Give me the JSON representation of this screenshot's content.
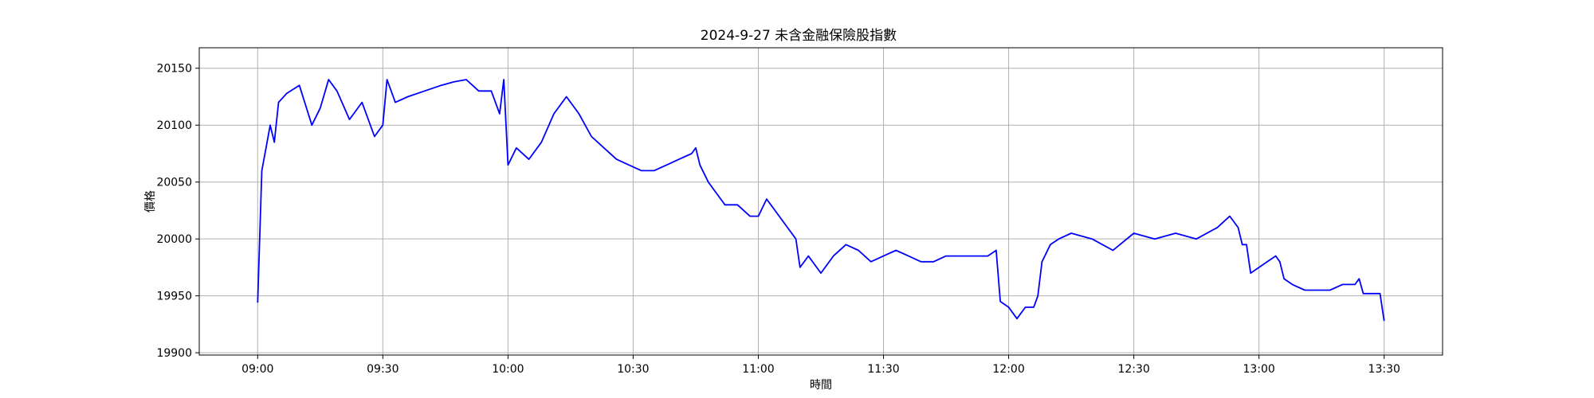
{
  "chart_data": {
    "type": "line",
    "title": "2024-9-27 未含金融保險股指數",
    "xlabel": "時間",
    "ylabel": "價格",
    "grid": true,
    "line_color": "#0000ff",
    "x_ticks": [
      "09:00",
      "09:30",
      "10:00",
      "10:30",
      "11:00",
      "11:30",
      "12:00",
      "12:30",
      "13:00",
      "13:30"
    ],
    "y_ticks": [
      19900,
      19950,
      20000,
      20050,
      20100,
      20150
    ],
    "xlim": [
      "08:46",
      "13:44"
    ],
    "ylim": [
      19898,
      20168
    ],
    "series": [
      {
        "x": [
          "09:00",
          "09:01",
          "09:02",
          "09:03",
          "09:04",
          "09:05",
          "09:07",
          "09:10",
          "09:13",
          "09:15",
          "09:17",
          "09:19",
          "09:22",
          "09:25",
          "09:28",
          "09:30",
          "09:31",
          "09:33",
          "09:36",
          "09:40",
          "09:44",
          "09:47",
          "09:50",
          "09:53",
          "09:56",
          "09:58",
          "09:59",
          "10:00",
          "10:02",
          "10:05",
          "10:08",
          "10:11",
          "10:14",
          "10:17",
          "10:20",
          "10:23",
          "10:26",
          "10:29",
          "10:32",
          "10:35",
          "10:38",
          "10:41",
          "10:44",
          "10:45",
          "10:46",
          "10:48",
          "10:50",
          "10:52",
          "10:55",
          "10:58",
          "11:00",
          "11:02",
          "11:05",
          "11:07",
          "11:09",
          "11:10",
          "11:12",
          "11:15",
          "11:18",
          "11:21",
          "11:24",
          "11:27",
          "11:30",
          "11:33",
          "11:36",
          "11:39",
          "11:42",
          "11:45",
          "11:48",
          "11:52",
          "11:55",
          "11:57",
          "11:58",
          "12:00",
          "12:02",
          "12:04",
          "12:06",
          "12:07",
          "12:08",
          "12:10",
          "12:12",
          "12:15",
          "12:20",
          "12:25",
          "12:30",
          "12:35",
          "12:40",
          "12:45",
          "12:50",
          "12:53",
          "12:55",
          "12:56",
          "12:57",
          "12:58",
          "13:00",
          "13:02",
          "13:04",
          "13:05",
          "13:06",
          "13:08",
          "13:11",
          "13:14",
          "13:17",
          "13:20",
          "13:23",
          "13:24",
          "13:25",
          "13:28",
          "13:29",
          "13:30"
        ],
        "y": [
          19944,
          20060,
          20080,
          20100,
          20085,
          20120,
          20128,
          20135,
          20100,
          20115,
          20140,
          20130,
          20105,
          20120,
          20090,
          20100,
          20140,
          20120,
          20125,
          20130,
          20135,
          20138,
          20140,
          20130,
          20130,
          20110,
          20140,
          20065,
          20080,
          20070,
          20085,
          20110,
          20125,
          20110,
          20090,
          20080,
          20070,
          20065,
          20060,
          20060,
          20065,
          20070,
          20075,
          20080,
          20065,
          20050,
          20040,
          20030,
          20030,
          20020,
          20020,
          20035,
          20020,
          20010,
          20000,
          19975,
          19985,
          19970,
          19985,
          19995,
          19990,
          19980,
          19985,
          19990,
          19985,
          19980,
          19980,
          19985,
          19985,
          19985,
          19985,
          19990,
          19945,
          19940,
          19930,
          19940,
          19940,
          19950,
          19980,
          19995,
          20000,
          20005,
          20000,
          19990,
          20005,
          20000,
          20005,
          20000,
          20010,
          20020,
          20010,
          19995,
          19995,
          19970,
          19975,
          19980,
          19985,
          19980,
          19965,
          19960,
          19955,
          19955,
          19955,
          19960,
          19960,
          19965,
          19952,
          19952,
          19952,
          19928
        ]
      }
    ]
  }
}
